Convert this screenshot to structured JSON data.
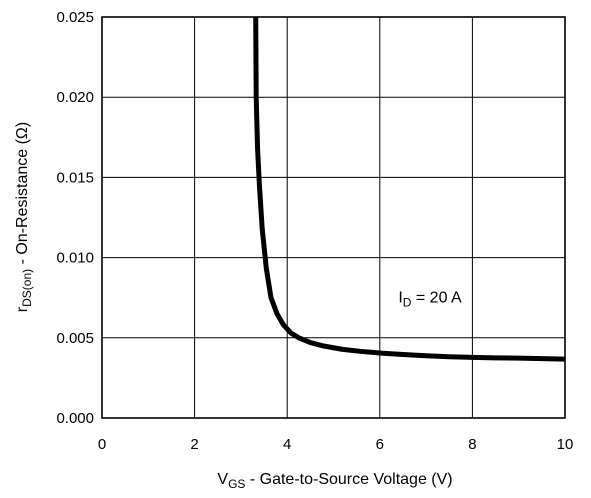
{
  "chart_data": {
    "type": "line",
    "title": "",
    "xlabel": {
      "main": "V",
      "sub": "GS",
      "rest": " -  Gate-to-Source Voltage (V)"
    },
    "ylabel": {
      "main": "r",
      "sub": "DS(on)",
      "rest": "  -  On-Resistance (Ω)"
    },
    "xlim": [
      0,
      10
    ],
    "ylim": [
      0,
      0.025
    ],
    "xticks": [
      0,
      2,
      4,
      6,
      8,
      10
    ],
    "xtick_labels": [
      "0",
      "2",
      "4",
      "6",
      "8",
      "10"
    ],
    "yticks": [
      0,
      0.005,
      0.01,
      0.015,
      0.02,
      0.025
    ],
    "ytick_labels": [
      "0.000",
      "0.005",
      "0.010",
      "0.015",
      "0.020",
      "0.025"
    ],
    "grid": true,
    "annotation": {
      "main": "I",
      "sub": "D",
      "rest": " = 20 A",
      "x": 6.4,
      "y": 0.0072
    },
    "series": [
      {
        "x": [
          3.32,
          3.33,
          3.36,
          3.4,
          3.46,
          3.55,
          3.65,
          3.78,
          3.92,
          4.08,
          4.25,
          4.5,
          4.8,
          5.2,
          5.6,
          6.0,
          6.5,
          7.0,
          7.5,
          8.0,
          8.5,
          9.0,
          9.5,
          10.0
        ],
        "y": [
          0.025,
          0.02,
          0.0168,
          0.0145,
          0.0118,
          0.0093,
          0.0075,
          0.0065,
          0.0058,
          0.0053,
          0.005,
          0.0047,
          0.00448,
          0.00428,
          0.00415,
          0.00405,
          0.00396,
          0.00388,
          0.00382,
          0.00378,
          0.00375,
          0.00373,
          0.0037,
          0.00367
        ],
        "color": "#000000"
      }
    ]
  }
}
